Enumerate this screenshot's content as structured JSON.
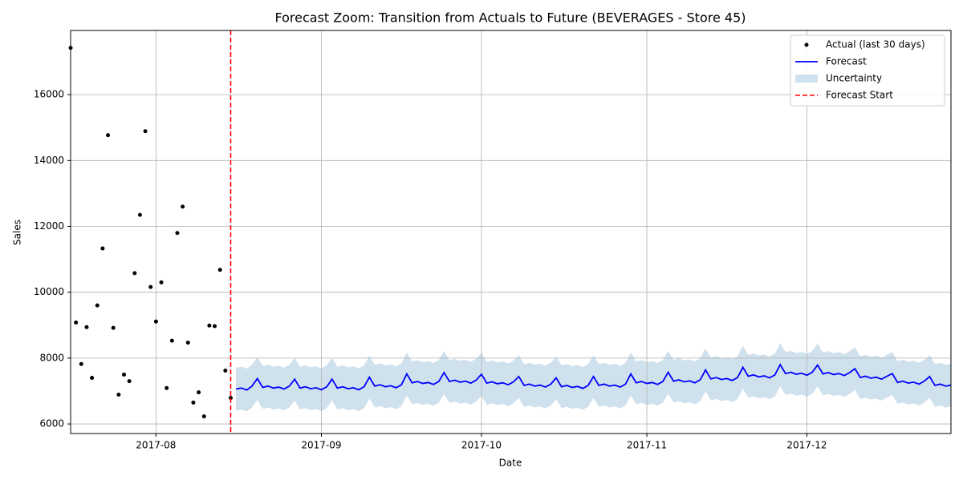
{
  "chart_data": {
    "type": "line",
    "title": "Forecast Zoom: Transition from Actuals to Future (BEVERAGES - Store 45)",
    "x_label": "Date",
    "y_label": "Sales",
    "xlim": [
      "2017-07-16",
      "2017-12-28"
    ],
    "xticks": [
      {
        "value": "2017-08-01",
        "label": "2017-08"
      },
      {
        "value": "2017-09-01",
        "label": "2017-09"
      },
      {
        "value": "2017-10-01",
        "label": "2017-10"
      },
      {
        "value": "2017-11-01",
        "label": "2017-11"
      },
      {
        "value": "2017-12-01",
        "label": "2017-12"
      }
    ],
    "ylim": [
      5710,
      17950
    ],
    "yticks": [
      6000,
      8000,
      10000,
      12000,
      14000,
      16000
    ],
    "grid": true,
    "legend": "upper right",
    "series": [
      {
        "name": "Actual (last 30 days)",
        "type": "scatter",
        "color": "#000000",
        "x": [
          "2017-07-16",
          "2017-07-17",
          "2017-07-18",
          "2017-07-19",
          "2017-07-20",
          "2017-07-21",
          "2017-07-22",
          "2017-07-23",
          "2017-07-24",
          "2017-07-25",
          "2017-07-26",
          "2017-07-27",
          "2017-07-28",
          "2017-07-29",
          "2017-07-30",
          "2017-07-31",
          "2017-08-01",
          "2017-08-02",
          "2017-08-03",
          "2017-08-04",
          "2017-08-05",
          "2017-08-06",
          "2017-08-07",
          "2017-08-08",
          "2017-08-09",
          "2017-08-10",
          "2017-08-11",
          "2017-08-12",
          "2017-08-13",
          "2017-08-14",
          "2017-08-15"
        ],
        "values": [
          17420,
          9080,
          7820,
          8940,
          7400,
          9600,
          11330,
          14770,
          8920,
          6890,
          7500,
          7300,
          10580,
          12350,
          14890,
          10160,
          9110,
          10300,
          7090,
          8530,
          11800,
          12600,
          8470,
          6650,
          6960,
          6230,
          8990,
          8970,
          10680,
          7620,
          6790
        ]
      },
      {
        "name": "Forecast",
        "type": "line",
        "color": "#0000ff",
        "x": [
          "2017-08-16",
          "2017-08-17",
          "2017-08-18",
          "2017-08-19",
          "2017-08-20",
          "2017-08-21",
          "2017-08-22",
          "2017-08-23",
          "2017-08-24",
          "2017-08-25",
          "2017-08-26",
          "2017-08-27",
          "2017-08-28",
          "2017-08-29",
          "2017-08-30",
          "2017-08-31",
          "2017-09-01",
          "2017-09-02",
          "2017-09-03",
          "2017-09-04",
          "2017-09-05",
          "2017-09-06",
          "2017-09-07",
          "2017-09-08",
          "2017-09-09",
          "2017-09-10",
          "2017-09-11",
          "2017-09-12",
          "2017-09-13",
          "2017-09-14",
          "2017-09-15",
          "2017-09-16",
          "2017-09-17",
          "2017-09-18",
          "2017-09-19",
          "2017-09-20",
          "2017-09-21",
          "2017-09-22",
          "2017-09-23",
          "2017-09-24",
          "2017-09-25",
          "2017-09-26",
          "2017-09-27",
          "2017-09-28",
          "2017-09-29",
          "2017-09-30",
          "2017-10-01",
          "2017-10-02",
          "2017-10-03",
          "2017-10-04",
          "2017-10-05",
          "2017-10-06",
          "2017-10-07",
          "2017-10-08",
          "2017-10-09",
          "2017-10-10",
          "2017-10-11",
          "2017-10-12",
          "2017-10-13",
          "2017-10-14",
          "2017-10-15",
          "2017-10-16",
          "2017-10-17",
          "2017-10-18",
          "2017-10-19",
          "2017-10-20",
          "2017-10-21",
          "2017-10-22",
          "2017-10-23",
          "2017-10-24",
          "2017-10-25",
          "2017-10-26",
          "2017-10-27",
          "2017-10-28",
          "2017-10-29",
          "2017-10-30",
          "2017-10-31",
          "2017-11-01",
          "2017-11-02",
          "2017-11-03",
          "2017-11-04",
          "2017-11-05",
          "2017-11-06",
          "2017-11-07",
          "2017-11-08",
          "2017-11-09",
          "2017-11-10",
          "2017-11-11",
          "2017-11-12",
          "2017-11-13",
          "2017-11-14",
          "2017-11-15",
          "2017-11-16",
          "2017-11-17",
          "2017-11-18",
          "2017-11-19",
          "2017-11-20",
          "2017-11-21",
          "2017-11-22",
          "2017-11-23",
          "2017-11-24",
          "2017-11-25",
          "2017-11-26",
          "2017-11-27",
          "2017-11-28",
          "2017-11-29",
          "2017-11-30",
          "2017-12-01",
          "2017-12-02",
          "2017-12-03",
          "2017-12-04",
          "2017-12-05",
          "2017-12-06",
          "2017-12-07",
          "2017-12-08",
          "2017-12-09",
          "2017-12-10",
          "2017-12-11",
          "2017-12-12",
          "2017-12-13",
          "2017-12-14",
          "2017-12-15",
          "2017-12-16",
          "2017-12-17",
          "2017-12-18",
          "2017-12-19",
          "2017-12-20",
          "2017-12-21",
          "2017-12-22",
          "2017-12-23",
          "2017-12-24",
          "2017-12-25",
          "2017-12-26",
          "2017-12-27",
          "2017-12-28"
        ],
        "values": [
          7060,
          7090,
          7030,
          7150,
          7380,
          7110,
          7150,
          7090,
          7120,
          7060,
          7150,
          7360,
          7090,
          7130,
          7070,
          7100,
          7040,
          7130,
          7360,
          7090,
          7130,
          7070,
          7100,
          7040,
          7130,
          7420,
          7150,
          7190,
          7130,
          7160,
          7100,
          7190,
          7520,
          7250,
          7290,
          7230,
          7260,
          7200,
          7290,
          7560,
          7290,
          7330,
          7270,
          7300,
          7240,
          7330,
          7510,
          7240,
          7280,
          7220,
          7250,
          7190,
          7280,
          7440,
          7170,
          7210,
          7150,
          7180,
          7120,
          7210,
          7400,
          7130,
          7170,
          7110,
          7140,
          7080,
          7170,
          7440,
          7170,
          7210,
          7150,
          7180,
          7120,
          7210,
          7520,
          7250,
          7290,
          7230,
          7260,
          7200,
          7290,
          7570,
          7300,
          7340,
          7280,
          7310,
          7250,
          7340,
          7640,
          7370,
          7410,
          7350,
          7380,
          7320,
          7410,
          7720,
          7450,
          7490,
          7430,
          7460,
          7400,
          7490,
          7800,
          7530,
          7570,
          7510,
          7540,
          7480,
          7570,
          7790,
          7520,
          7560,
          7500,
          7530,
          7470,
          7560,
          7680,
          7410,
          7450,
          7390,
          7420,
          7360,
          7450,
          7530,
          7260,
          7300,
          7240,
          7270,
          7210,
          7300,
          7440,
          7170,
          7210,
          7150,
          7180
        ]
      },
      {
        "name": "Uncertainty",
        "type": "band",
        "color": "#d0e1ee",
        "lower": [
          6410,
          6440,
          6380,
          6500,
          6730,
          6460,
          6500,
          6440,
          6470,
          6410,
          6500,
          6710,
          6440,
          6480,
          6420,
          6450,
          6390,
          6480,
          6710,
          6440,
          6480,
          6420,
          6450,
          6390,
          6480,
          6770,
          6500,
          6540,
          6480,
          6510,
          6450,
          6540,
          6870,
          6600,
          6640,
          6580,
          6610,
          6550,
          6640,
          6910,
          6640,
          6680,
          6620,
          6650,
          6590,
          6680,
          6860,
          6590,
          6630,
          6570,
          6600,
          6540,
          6630,
          6790,
          6520,
          6560,
          6500,
          6530,
          6470,
          6560,
          6750,
          6480,
          6520,
          6460,
          6490,
          6430,
          6520,
          6790,
          6520,
          6560,
          6500,
          6530,
          6470,
          6560,
          6870,
          6600,
          6640,
          6580,
          6610,
          6550,
          6640,
          6920,
          6650,
          6690,
          6630,
          6660,
          6600,
          6690,
          6990,
          6720,
          6760,
          6700,
          6730,
          6670,
          6760,
          7070,
          6800,
          6840,
          6780,
          6810,
          6750,
          6840,
          7150,
          6880,
          6920,
          6860,
          6890,
          6830,
          6920,
          7140,
          6870,
          6910,
          6850,
          6880,
          6820,
          6910,
          7030,
          6760,
          6800,
          6740,
          6770,
          6710,
          6800,
          6880,
          6610,
          6650,
          6590,
          6620,
          6560,
          6650,
          6790,
          6520,
          6560,
          6500,
          6530
        ],
        "upper": [
          7710,
          7740,
          7680,
          7800,
          8030,
          7760,
          7800,
          7740,
          7770,
          7710,
          7800,
          8010,
          7740,
          7780,
          7720,
          7750,
          7690,
          7780,
          8010,
          7740,
          7780,
          7720,
          7750,
          7690,
          7780,
          8070,
          7800,
          7840,
          7780,
          7810,
          7750,
          7840,
          8170,
          7900,
          7940,
          7880,
          7910,
          7850,
          7940,
          8210,
          7940,
          7980,
          7920,
          7950,
          7890,
          7980,
          8160,
          7890,
          7930,
          7870,
          7900,
          7840,
          7930,
          8090,
          7820,
          7860,
          7800,
          7830,
          7770,
          7860,
          8050,
          7780,
          7820,
          7760,
          7790,
          7730,
          7820,
          8090,
          7820,
          7860,
          7800,
          7830,
          7770,
          7860,
          8170,
          7900,
          7940,
          7880,
          7910,
          7850,
          7940,
          8220,
          7950,
          7990,
          7930,
          7960,
          7900,
          7990,
          8290,
          8020,
          8060,
          8000,
          8030,
          7970,
          8060,
          8370,
          8100,
          8140,
          8080,
          8110,
          8050,
          8140,
          8450,
          8180,
          8220,
          8160,
          8190,
          8130,
          8220,
          8440,
          8170,
          8210,
          8150,
          8180,
          8120,
          8210,
          8330,
          8060,
          8100,
          8040,
          8070,
          8010,
          8100,
          8180,
          7910,
          7950,
          7890,
          7920,
          7860,
          7950,
          8090,
          7820,
          7860,
          7800,
          7830
        ]
      },
      {
        "name": "Forecast Start",
        "type": "vline",
        "color": "#ff0000",
        "x": "2017-08-15"
      }
    ]
  }
}
